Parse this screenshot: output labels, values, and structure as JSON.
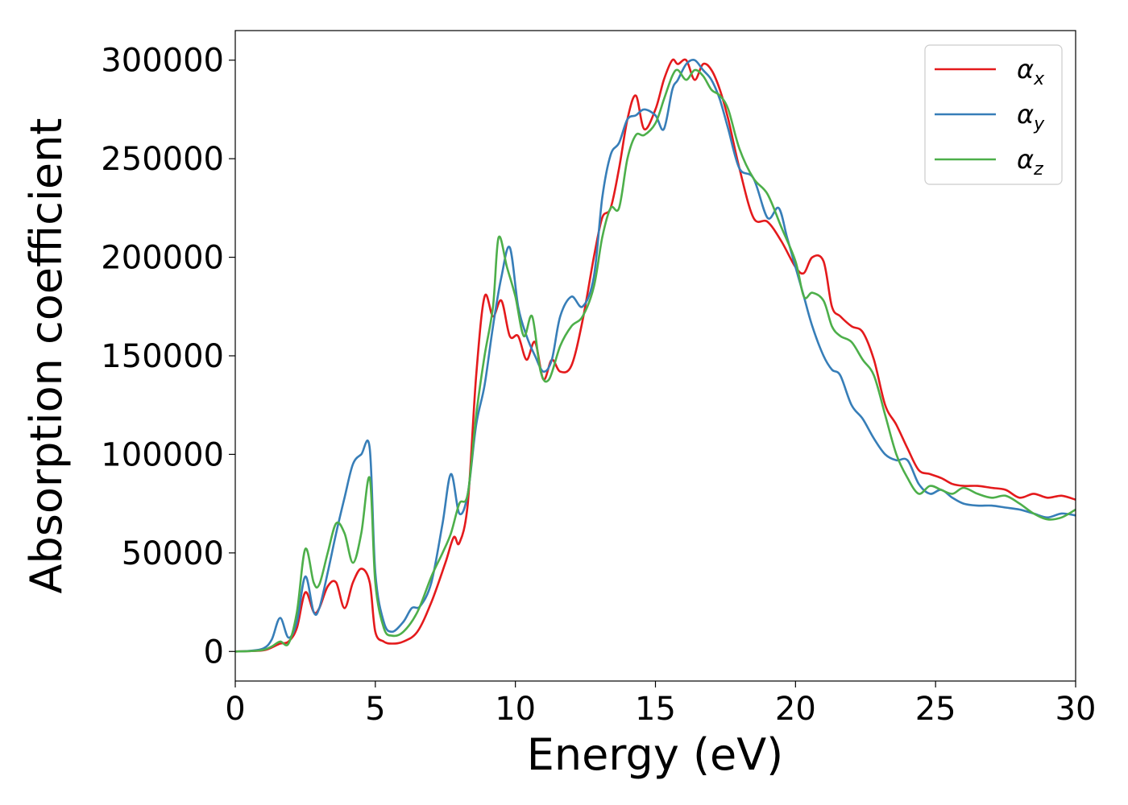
{
  "chart_data": {
    "type": "line",
    "title": "",
    "xlabel": "Energy (eV)",
    "ylabel": "Absorption coefficient",
    "xlim": [
      0,
      30
    ],
    "ylim": [
      -15000,
      315000
    ],
    "xticks": [
      "0",
      "5",
      "10",
      "15",
      "20",
      "25",
      "30"
    ],
    "yticks": [
      "0",
      "50000",
      "100000",
      "150000",
      "200000",
      "250000",
      "300000"
    ],
    "grid": false,
    "legend_position": "top-right",
    "legend": [
      {
        "symbol": "α",
        "sub": "x"
      },
      {
        "symbol": "α",
        "sub": "y"
      },
      {
        "symbol": "α",
        "sub": "z"
      }
    ],
    "colors": [
      "#e41a1c",
      "#377eb8",
      "#4daf4a"
    ],
    "series": [
      {
        "x": [
          0,
          0.5,
          1,
          1.3,
          1.6,
          1.9,
          2.2,
          2.5,
          2.8,
          3.0,
          3.3,
          3.6,
          3.9,
          4.2,
          4.5,
          4.8,
          5.0,
          5.3,
          5.6,
          6.0,
          6.5,
          7.0,
          7.5,
          7.8,
          8.0,
          8.3,
          8.6,
          8.9,
          9.2,
          9.5,
          9.8,
          10.1,
          10.4,
          10.7,
          11.0,
          11.3,
          11.6,
          12.0,
          12.4,
          12.8,
          13.1,
          13.4,
          13.7,
          14.0,
          14.3,
          14.6,
          15.0,
          15.3,
          15.6,
          15.8,
          16.1,
          16.4,
          16.7,
          17.0,
          17.3,
          17.6,
          18.0,
          18.5,
          19.0,
          19.5,
          20.0,
          20.3,
          20.6,
          21.0,
          21.3,
          21.6,
          22.0,
          22.4,
          22.8,
          23.2,
          23.6,
          24.0,
          24.4,
          24.8,
          25.2,
          25.6,
          26.0,
          26.5,
          27.0,
          27.5,
          28.0,
          28.5,
          29.0,
          29.5,
          30.0
        ],
        "y": [
          0,
          200,
          600,
          2000,
          4000,
          5000,
          12000,
          30000,
          20000,
          22000,
          33000,
          35000,
          22000,
          35000,
          42000,
          35000,
          10000,
          5000,
          4000,
          5000,
          10000,
          25000,
          45000,
          58000,
          55000,
          75000,
          140000,
          180000,
          170000,
          178000,
          160000,
          160000,
          148000,
          157000,
          138000,
          148000,
          142000,
          145000,
          168000,
          200000,
          220000,
          225000,
          245000,
          270000,
          282000,
          265000,
          275000,
          290000,
          300000,
          298000,
          300000,
          290000,
          298000,
          295000,
          285000,
          270000,
          245000,
          220000,
          218000,
          208000,
          195000,
          192000,
          200000,
          198000,
          175000,
          170000,
          165000,
          162000,
          148000,
          125000,
          115000,
          103000,
          92000,
          90000,
          88000,
          85000,
          84000,
          84000,
          83000,
          82000,
          78000,
          80000,
          78000,
          79000,
          77000
        ]
      },
      {
        "x": [
          0,
          0.5,
          1,
          1.3,
          1.6,
          1.9,
          2.2,
          2.5,
          2.8,
          3.0,
          3.3,
          3.6,
          3.9,
          4.2,
          4.5,
          4.8,
          5.0,
          5.3,
          5.6,
          6.0,
          6.3,
          6.6,
          7.0,
          7.4,
          7.7,
          8.0,
          8.3,
          8.6,
          8.9,
          9.2,
          9.5,
          9.8,
          10.1,
          10.4,
          10.7,
          11.0,
          11.3,
          11.6,
          12.0,
          12.4,
          12.8,
          13.1,
          13.4,
          13.7,
          14.0,
          14.3,
          14.6,
          15.0,
          15.3,
          15.6,
          15.8,
          16.1,
          16.4,
          16.7,
          17.0,
          17.3,
          17.6,
          18.0,
          18.5,
          19.0,
          19.4,
          19.7,
          20.0,
          20.3,
          20.6,
          21.0,
          21.3,
          21.6,
          22.0,
          22.4,
          22.8,
          23.2,
          23.6,
          24.0,
          24.4,
          24.8,
          25.2,
          25.6,
          26.0,
          26.5,
          27.0,
          27.5,
          28.0,
          28.5,
          29.0,
          29.5,
          30.0
        ],
        "y": [
          0,
          300,
          1500,
          6000,
          17000,
          7000,
          15000,
          38000,
          20000,
          22000,
          40000,
          60000,
          78000,
          95000,
          100000,
          103000,
          40000,
          15000,
          10000,
          15000,
          22000,
          23000,
          35000,
          65000,
          90000,
          70000,
          80000,
          115000,
          135000,
          165000,
          190000,
          205000,
          175000,
          160000,
          150000,
          142000,
          148000,
          170000,
          180000,
          175000,
          190000,
          230000,
          252000,
          258000,
          270000,
          272000,
          275000,
          272000,
          265000,
          285000,
          290000,
          298000,
          300000,
          295000,
          290000,
          280000,
          265000,
          245000,
          240000,
          220000,
          225000,
          210000,
          195000,
          180000,
          165000,
          150000,
          143000,
          140000,
          125000,
          118000,
          108000,
          100000,
          97000,
          97000,
          85000,
          80000,
          82000,
          78000,
          75000,
          74000,
          74000,
          73000,
          72000,
          70000,
          68000,
          70000,
          69000
        ]
      },
      {
        "x": [
          0,
          0.5,
          1,
          1.3,
          1.6,
          1.9,
          2.2,
          2.5,
          2.8,
          3.0,
          3.3,
          3.6,
          3.9,
          4.2,
          4.5,
          4.8,
          5.0,
          5.3,
          5.6,
          6.0,
          6.5,
          7.0,
          7.4,
          7.7,
          8.0,
          8.3,
          8.6,
          8.9,
          9.2,
          9.4,
          9.7,
          10.0,
          10.3,
          10.6,
          10.9,
          11.2,
          11.6,
          12.0,
          12.4,
          12.8,
          13.1,
          13.4,
          13.7,
          14.0,
          14.3,
          14.6,
          15.0,
          15.3,
          15.6,
          15.8,
          16.1,
          16.4,
          16.7,
          17.0,
          17.3,
          17.6,
          18.0,
          18.5,
          19.0,
          19.5,
          20.0,
          20.3,
          20.6,
          21.0,
          21.3,
          21.6,
          22.0,
          22.4,
          22.8,
          23.2,
          23.6,
          24.0,
          24.4,
          24.8,
          25.2,
          25.6,
          26.0,
          26.5,
          27.0,
          27.5,
          28.0,
          28.5,
          29.0,
          29.5,
          30.0
        ],
        "y": [
          0,
          200,
          800,
          2500,
          5000,
          4000,
          20000,
          52000,
          35000,
          34000,
          50000,
          65000,
          60000,
          45000,
          60000,
          88000,
          35000,
          12000,
          8000,
          10000,
          20000,
          38000,
          50000,
          60000,
          75000,
          80000,
          120000,
          150000,
          175000,
          210000,
          195000,
          180000,
          160000,
          170000,
          142000,
          138000,
          155000,
          165000,
          170000,
          185000,
          210000,
          225000,
          225000,
          250000,
          262000,
          262000,
          268000,
          280000,
          292000,
          295000,
          290000,
          295000,
          292000,
          285000,
          282000,
          275000,
          255000,
          240000,
          232000,
          215000,
          198000,
          180000,
          182000,
          178000,
          165000,
          160000,
          157000,
          148000,
          140000,
          120000,
          100000,
          88000,
          80000,
          84000,
          82000,
          80000,
          83000,
          80000,
          78000,
          79000,
          75000,
          70000,
          67000,
          68000,
          72000
        ]
      }
    ]
  }
}
